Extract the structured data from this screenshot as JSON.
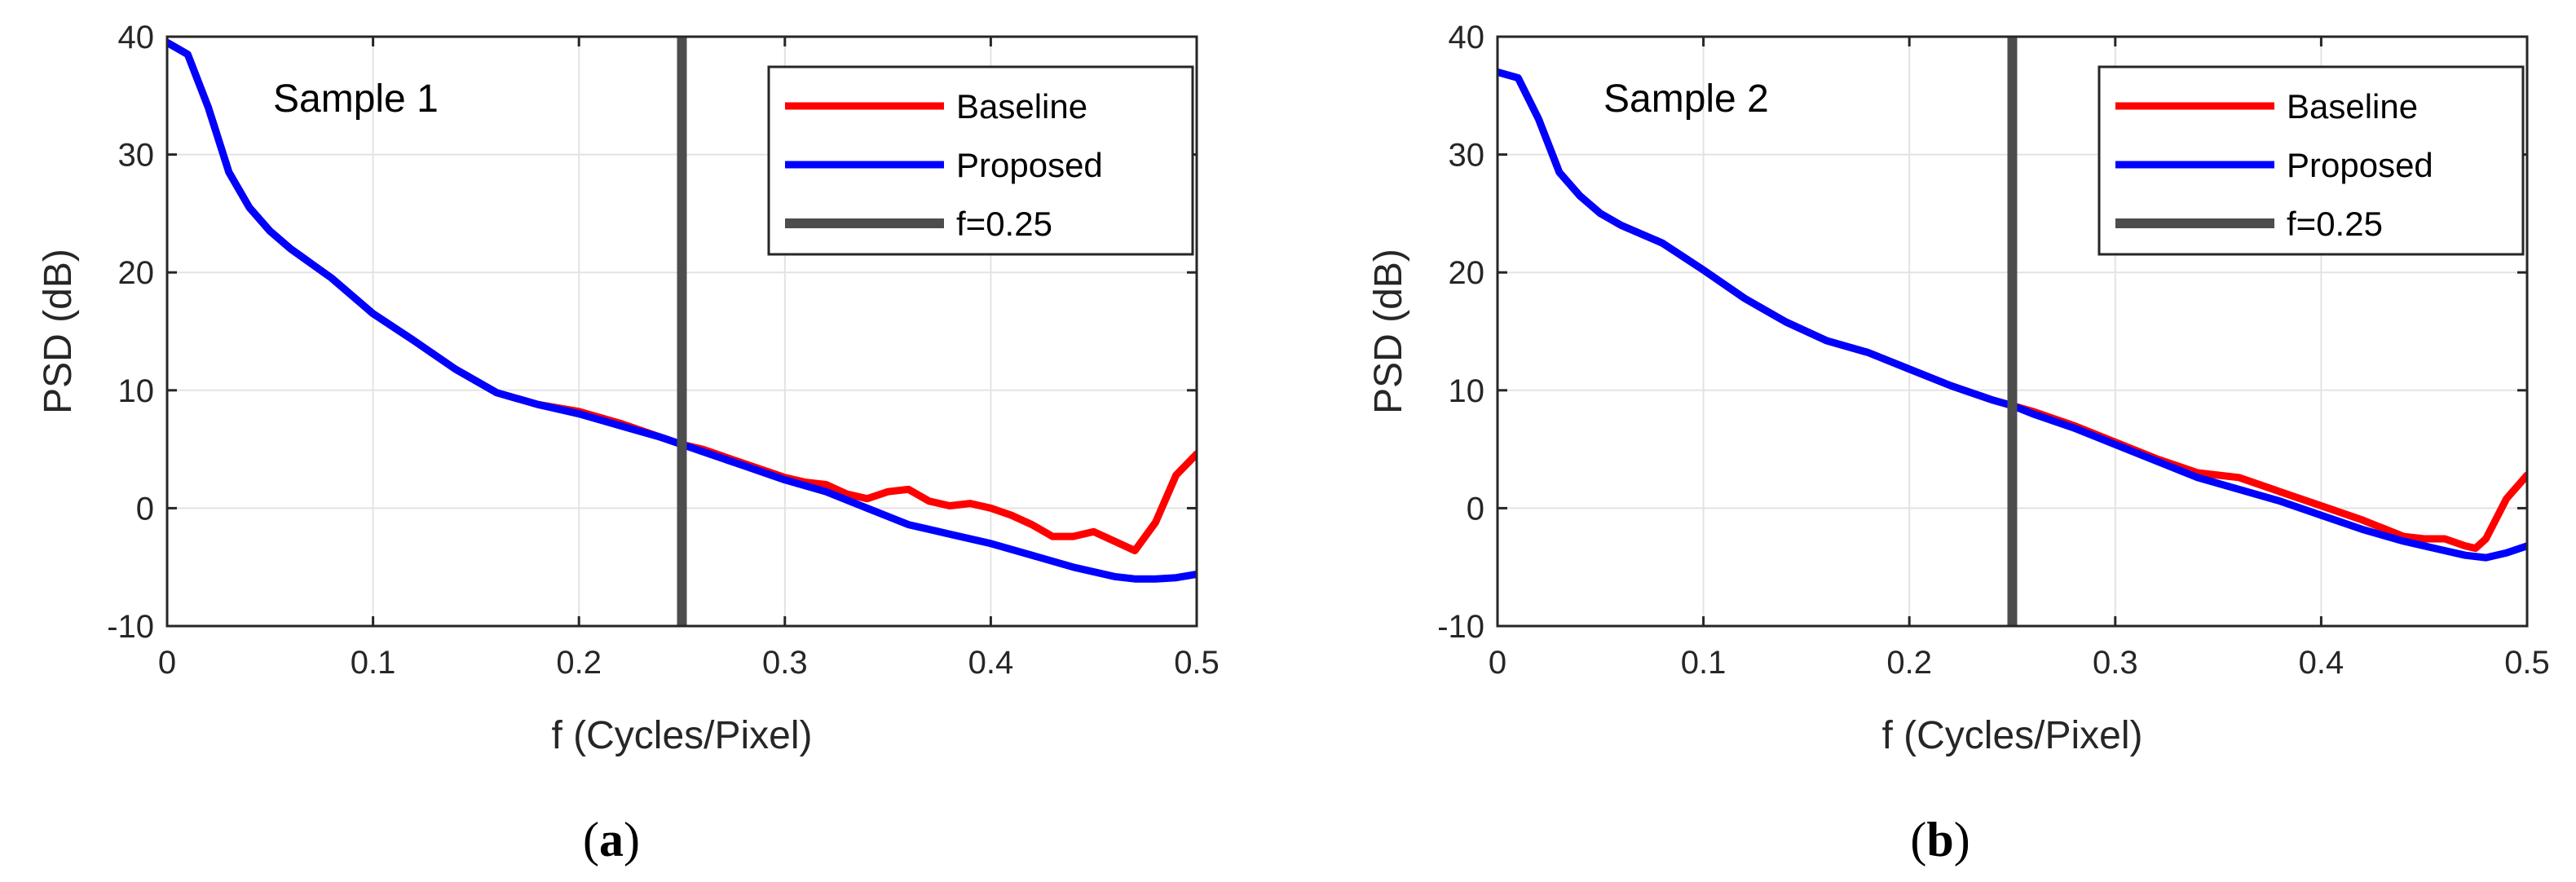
{
  "chart_data": [
    {
      "type": "line",
      "panel_label": "a",
      "annotation": "Sample 1",
      "xlabel": "f (Cycles/Pixel)",
      "ylabel": "PSD (dB)",
      "xlim": [
        0,
        0.5
      ],
      "ylim": [
        -10,
        40
      ],
      "xticks": [
        0,
        0.1,
        0.2,
        0.3,
        0.4,
        0.5
      ],
      "xtick_labels": [
        "0",
        "0.1",
        "0.2",
        "0.3",
        "0.4",
        "0.5"
      ],
      "yticks": [
        -10,
        0,
        10,
        20,
        30,
        40
      ],
      "ytick_labels": [
        "-10",
        "0",
        "10",
        "20",
        "30",
        "40"
      ],
      "grid": true,
      "legend_position": "top-right",
      "series": [
        {
          "name": "Baseline",
          "color": "#ff0000",
          "x": [
            0,
            0.01,
            0.02,
            0.03,
            0.04,
            0.05,
            0.06,
            0.08,
            0.1,
            0.12,
            0.14,
            0.16,
            0.18,
            0.2,
            0.22,
            0.24,
            0.25,
            0.26,
            0.28,
            0.3,
            0.31,
            0.32,
            0.33,
            0.34,
            0.35,
            0.36,
            0.37,
            0.38,
            0.39,
            0.4,
            0.41,
            0.42,
            0.43,
            0.44,
            0.45,
            0.46,
            0.47,
            0.48,
            0.49,
            0.5
          ],
          "y": [
            39.5,
            38.5,
            34,
            28.5,
            25.5,
            23.5,
            22,
            19.5,
            16.5,
            14.2,
            11.8,
            9.8,
            8.8,
            8.2,
            7.2,
            6.0,
            5.4,
            5.0,
            3.8,
            2.6,
            2.2,
            2.0,
            1.2,
            0.8,
            1.4,
            1.6,
            0.6,
            0.2,
            0.4,
            0.0,
            -0.6,
            -1.4,
            -2.4,
            -2.4,
            -2.0,
            -2.8,
            -3.6,
            -1.2,
            2.8,
            4.6
          ]
        },
        {
          "name": "Proposed",
          "color": "#0000ff",
          "x": [
            0,
            0.01,
            0.02,
            0.03,
            0.04,
            0.05,
            0.06,
            0.08,
            0.1,
            0.12,
            0.14,
            0.16,
            0.18,
            0.2,
            0.22,
            0.24,
            0.25,
            0.26,
            0.28,
            0.3,
            0.32,
            0.34,
            0.36,
            0.38,
            0.4,
            0.42,
            0.44,
            0.46,
            0.47,
            0.48,
            0.49,
            0.5
          ],
          "y": [
            39.5,
            38.5,
            34,
            28.5,
            25.5,
            23.5,
            22,
            19.5,
            16.5,
            14.2,
            11.8,
            9.8,
            8.8,
            8.0,
            7.0,
            6.0,
            5.4,
            4.8,
            3.6,
            2.4,
            1.4,
            0.0,
            -1.4,
            -2.2,
            -3.0,
            -4.0,
            -5.0,
            -5.8,
            -6.0,
            -6.0,
            -5.9,
            -5.6
          ]
        },
        {
          "name": "f=0.25",
          "color": "#4d4d4d",
          "x": [
            0.25,
            0.25
          ],
          "y": [
            -10,
            40
          ]
        }
      ]
    },
    {
      "type": "line",
      "panel_label": "b",
      "annotation": "Sample 2",
      "xlabel": "f (Cycles/Pixel)",
      "ylabel": "PSD (dB)",
      "xlim": [
        0,
        0.5
      ],
      "ylim": [
        -10,
        40
      ],
      "xticks": [
        0,
        0.1,
        0.2,
        0.3,
        0.4,
        0.5
      ],
      "xtick_labels": [
        "0",
        "0.1",
        "0.2",
        "0.3",
        "0.4",
        "0.5"
      ],
      "yticks": [
        -10,
        0,
        10,
        20,
        30,
        40
      ],
      "ytick_labels": [
        "-10",
        "0",
        "10",
        "20",
        "30",
        "40"
      ],
      "grid": true,
      "legend_position": "top-right",
      "series": [
        {
          "name": "Baseline",
          "color": "#ff0000",
          "x": [
            0,
            0.01,
            0.02,
            0.03,
            0.04,
            0.05,
            0.06,
            0.08,
            0.1,
            0.12,
            0.14,
            0.16,
            0.18,
            0.2,
            0.22,
            0.24,
            0.25,
            0.26,
            0.28,
            0.3,
            0.32,
            0.34,
            0.36,
            0.38,
            0.4,
            0.42,
            0.44,
            0.45,
            0.46,
            0.47,
            0.475,
            0.48,
            0.49,
            0.5
          ],
          "y": [
            37,
            36.5,
            33,
            28.5,
            26.5,
            25,
            24,
            22.5,
            20.2,
            17.8,
            15.8,
            14.2,
            13.2,
            11.8,
            10.4,
            9.2,
            8.7,
            8.2,
            7.0,
            5.6,
            4.2,
            3.0,
            2.6,
            1.4,
            0.2,
            -1.0,
            -2.4,
            -2.6,
            -2.6,
            -3.2,
            -3.4,
            -2.6,
            0.8,
            2.8
          ]
        },
        {
          "name": "Proposed",
          "color": "#0000ff",
          "x": [
            0,
            0.01,
            0.02,
            0.03,
            0.04,
            0.05,
            0.06,
            0.08,
            0.1,
            0.12,
            0.14,
            0.16,
            0.18,
            0.2,
            0.22,
            0.24,
            0.25,
            0.26,
            0.28,
            0.3,
            0.32,
            0.34,
            0.36,
            0.38,
            0.4,
            0.42,
            0.44,
            0.46,
            0.47,
            0.48,
            0.49,
            0.5
          ],
          "y": [
            37,
            36.5,
            33,
            28.5,
            26.5,
            25,
            24,
            22.5,
            20.2,
            17.8,
            15.8,
            14.2,
            13.2,
            11.8,
            10.4,
            9.2,
            8.7,
            8.0,
            6.8,
            5.4,
            4.0,
            2.6,
            1.6,
            0.6,
            -0.6,
            -1.8,
            -2.8,
            -3.6,
            -4.0,
            -4.2,
            -3.8,
            -3.2
          ]
        },
        {
          "name": "f=0.25",
          "color": "#4d4d4d",
          "x": [
            0.25,
            0.25
          ],
          "y": [
            -10,
            40
          ]
        }
      ]
    }
  ]
}
